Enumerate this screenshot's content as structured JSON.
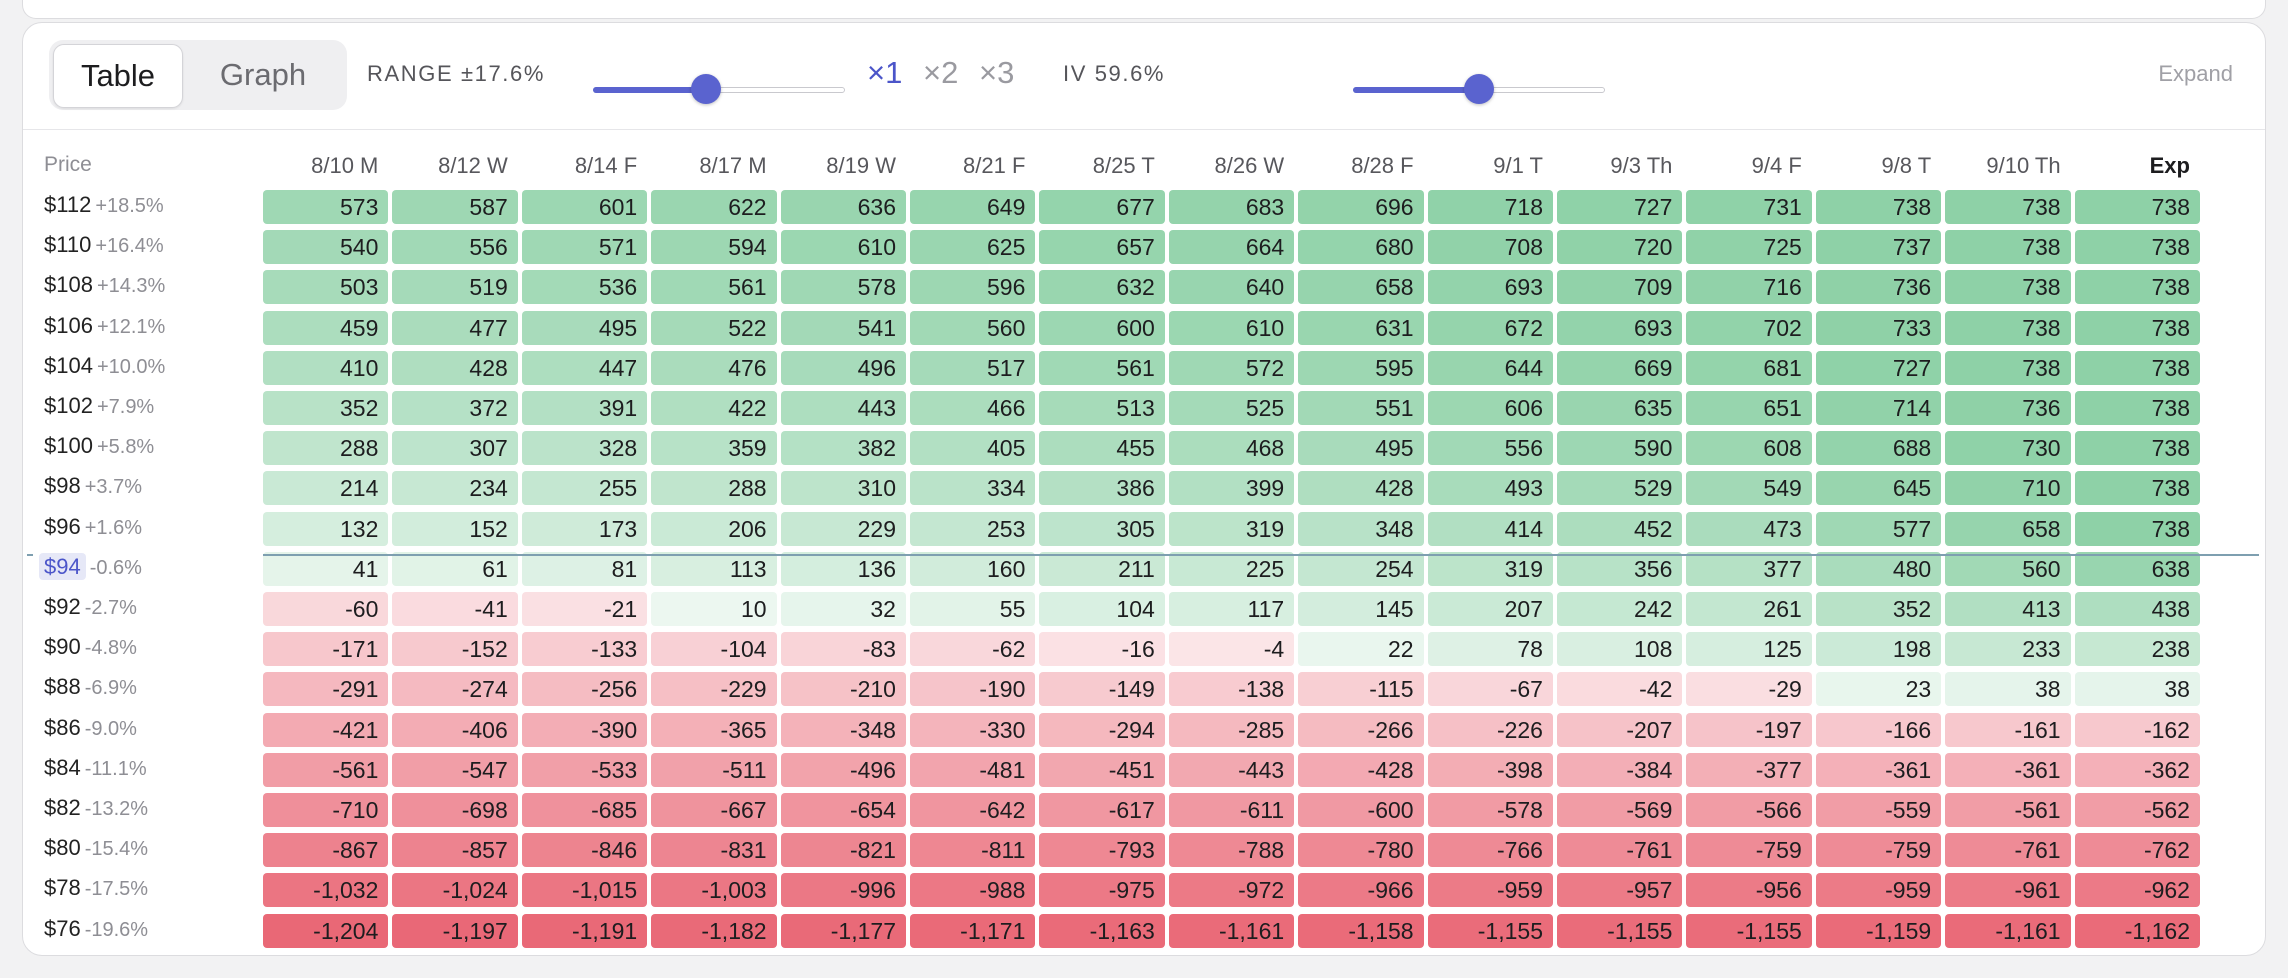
{
  "toolbar": {
    "view_tabs": [
      "Table",
      "Graph"
    ],
    "active_tab": "Table",
    "range_label": "RANGE ±17.6%",
    "range_slider_value_pct": 45,
    "multipliers": [
      "×1",
      "×2",
      "×3"
    ],
    "selected_multiplier": "×1",
    "iv_label": "IV 59.6%",
    "iv_slider_value_pct": 50,
    "expand_label": "Expand"
  },
  "colors": {
    "accent": "#5a63cf",
    "profit_max": "#7fcb9b",
    "loss_max": "#e8606f"
  },
  "table": {
    "price_header": "Price",
    "columns": [
      "8/10 M",
      "8/12 W",
      "8/14 F",
      "8/17 M",
      "8/19 W",
      "8/21 F",
      "8/25 T",
      "8/26 W",
      "8/28 F",
      "9/1 T",
      "9/3 Th",
      "9/4 F",
      "9/8 T",
      "9/10 Th",
      "Exp"
    ],
    "current_price_label": "$94",
    "rows": [
      {
        "price": "$112",
        "pct": "+18.5%",
        "values": [
          "573",
          "587",
          "601",
          "622",
          "636",
          "649",
          "677",
          "683",
          "696",
          "718",
          "727",
          "731",
          "738",
          "738",
          "738"
        ]
      },
      {
        "price": "$110",
        "pct": "+16.4%",
        "values": [
          "540",
          "556",
          "571",
          "594",
          "610",
          "625",
          "657",
          "664",
          "680",
          "708",
          "720",
          "725",
          "737",
          "738",
          "738"
        ]
      },
      {
        "price": "$108",
        "pct": "+14.3%",
        "values": [
          "503",
          "519",
          "536",
          "561",
          "578",
          "596",
          "632",
          "640",
          "658",
          "693",
          "709",
          "716",
          "736",
          "738",
          "738"
        ]
      },
      {
        "price": "$106",
        "pct": "+12.1%",
        "values": [
          "459",
          "477",
          "495",
          "522",
          "541",
          "560",
          "600",
          "610",
          "631",
          "672",
          "693",
          "702",
          "733",
          "738",
          "738"
        ]
      },
      {
        "price": "$104",
        "pct": "+10.0%",
        "values": [
          "410",
          "428",
          "447",
          "476",
          "496",
          "517",
          "561",
          "572",
          "595",
          "644",
          "669",
          "681",
          "727",
          "738",
          "738"
        ]
      },
      {
        "price": "$102",
        "pct": "+7.9%",
        "values": [
          "352",
          "372",
          "391",
          "422",
          "443",
          "466",
          "513",
          "525",
          "551",
          "606",
          "635",
          "651",
          "714",
          "736",
          "738"
        ]
      },
      {
        "price": "$100",
        "pct": "+5.8%",
        "values": [
          "288",
          "307",
          "328",
          "359",
          "382",
          "405",
          "455",
          "468",
          "495",
          "556",
          "590",
          "608",
          "688",
          "730",
          "738"
        ]
      },
      {
        "price": "$98",
        "pct": "+3.7%",
        "values": [
          "214",
          "234",
          "255",
          "288",
          "310",
          "334",
          "386",
          "399",
          "428",
          "493",
          "529",
          "549",
          "645",
          "710",
          "738"
        ]
      },
      {
        "price": "$96",
        "pct": "+1.6%",
        "values": [
          "132",
          "152",
          "173",
          "206",
          "229",
          "253",
          "305",
          "319",
          "348",
          "414",
          "452",
          "473",
          "577",
          "658",
          "738"
        ]
      },
      {
        "price": "$94",
        "pct": "-0.6%",
        "values": [
          "41",
          "61",
          "81",
          "113",
          "136",
          "160",
          "211",
          "225",
          "254",
          "319",
          "356",
          "377",
          "480",
          "560",
          "638"
        ]
      },
      {
        "price": "$92",
        "pct": "-2.7%",
        "values": [
          "-60",
          "-41",
          "-21",
          "10",
          "32",
          "55",
          "104",
          "117",
          "145",
          "207",
          "242",
          "261",
          "352",
          "413",
          "438"
        ]
      },
      {
        "price": "$90",
        "pct": "-4.8%",
        "values": [
          "-171",
          "-152",
          "-133",
          "-104",
          "-83",
          "-62",
          "-16",
          "-4",
          "22",
          "78",
          "108",
          "125",
          "198",
          "233",
          "238"
        ]
      },
      {
        "price": "$88",
        "pct": "-6.9%",
        "values": [
          "-291",
          "-274",
          "-256",
          "-229",
          "-210",
          "-190",
          "-149",
          "-138",
          "-115",
          "-67",
          "-42",
          "-29",
          "23",
          "38",
          "38"
        ]
      },
      {
        "price": "$86",
        "pct": "-9.0%",
        "values": [
          "-421",
          "-406",
          "-390",
          "-365",
          "-348",
          "-330",
          "-294",
          "-285",
          "-266",
          "-226",
          "-207",
          "-197",
          "-166",
          "-161",
          "-162"
        ]
      },
      {
        "price": "$84",
        "pct": "-11.1%",
        "values": [
          "-561",
          "-547",
          "-533",
          "-511",
          "-496",
          "-481",
          "-451",
          "-443",
          "-428",
          "-398",
          "-384",
          "-377",
          "-361",
          "-361",
          "-362"
        ]
      },
      {
        "price": "$82",
        "pct": "-13.2%",
        "values": [
          "-710",
          "-698",
          "-685",
          "-667",
          "-654",
          "-642",
          "-617",
          "-611",
          "-600",
          "-578",
          "-569",
          "-566",
          "-559",
          "-561",
          "-562"
        ]
      },
      {
        "price": "$80",
        "pct": "-15.4%",
        "values": [
          "-867",
          "-857",
          "-846",
          "-831",
          "-821",
          "-811",
          "-793",
          "-788",
          "-780",
          "-766",
          "-761",
          "-759",
          "-759",
          "-761",
          "-762"
        ]
      },
      {
        "price": "$78",
        "pct": "-17.5%",
        "values": [
          "-1,032",
          "-1,024",
          "-1,015",
          "-1,003",
          "-996",
          "-988",
          "-975",
          "-972",
          "-966",
          "-959",
          "-957",
          "-956",
          "-959",
          "-961",
          "-962"
        ]
      },
      {
        "price": "$76",
        "pct": "-19.6%",
        "values": [
          "-1,204",
          "-1,197",
          "-1,191",
          "-1,182",
          "-1,177",
          "-1,171",
          "-1,163",
          "-1,161",
          "-1,158",
          "-1,155",
          "-1,155",
          "-1,155",
          "-1,159",
          "-1,161",
          "-1,162"
        ]
      }
    ]
  }
}
